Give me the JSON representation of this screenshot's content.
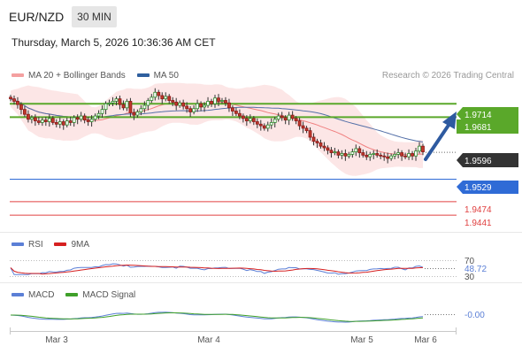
{
  "header": {
    "symbol": "EUR/NZD",
    "timeframe": "30 MIN",
    "datetime": "Thursday, March 5, 2026 10:36:36 AM CET"
  },
  "legend": {
    "main": [
      {
        "label": "MA 20 + Bollinger Bands",
        "color": "#f4a0a0"
      },
      {
        "label": "MA 50",
        "color": "#2f5f9e"
      }
    ],
    "credit": "Research © 2026 Trading Central",
    "rsi": [
      {
        "label": "RSI",
        "color": "#5b7fd6"
      },
      {
        "label": "9MA",
        "color": "#d62020"
      }
    ],
    "macd": [
      {
        "label": "MACD",
        "color": "#5b7fd6"
      },
      {
        "label": "MACD Signal",
        "color": "#3fa02a"
      }
    ]
  },
  "chart_data": {
    "type": "candlestick",
    "x_labels": [
      "Mar 3",
      "Mar 4",
      "Mar 5",
      "Mar 6"
    ],
    "price_range": [
      1.94,
      1.976
    ],
    "levels": [
      {
        "label": "1.9714",
        "value": 1.9714,
        "kind": "resistance",
        "color": "#5aa82a"
      },
      {
        "label": "1.9681",
        "value": 1.9681,
        "kind": "resistance",
        "color": "#5aa82a"
      },
      {
        "label": "1.9596",
        "value": 1.9596,
        "kind": "last",
        "color": "#333333"
      },
      {
        "label": "1.9529",
        "value": 1.9529,
        "kind": "pivot",
        "color": "#2f6bd6"
      },
      {
        "label": "1.9474",
        "value": 1.9474,
        "kind": "support",
        "color": "#e04040"
      },
      {
        "label": "1.9441",
        "value": 1.9441,
        "kind": "support",
        "color": "#e04040"
      }
    ],
    "closes": [
      1.9726,
      1.972,
      1.9712,
      1.97,
      1.9688,
      1.9676,
      1.968,
      1.9672,
      1.9668,
      1.9674,
      1.967,
      1.9678,
      1.9668,
      1.9664,
      1.967,
      1.9662,
      1.9672,
      1.9668,
      1.968,
      1.9676,
      1.9684,
      1.9674,
      1.967,
      1.9676,
      1.9684,
      1.969,
      1.97,
      1.9714,
      1.9716,
      1.972,
      1.9726,
      1.9712,
      1.9704,
      1.972,
      1.9692,
      1.9686,
      1.9694,
      1.9702,
      1.971,
      1.9722,
      1.973,
      1.9742,
      1.9734,
      1.9726,
      1.9732,
      1.9722,
      1.9718,
      1.971,
      1.9716,
      1.9708,
      1.9702,
      1.9694,
      1.9702,
      1.9714,
      1.9706,
      1.971,
      1.972,
      1.9714,
      1.9728,
      1.972,
      1.9722,
      1.9716,
      1.9704,
      1.9696,
      1.969,
      1.9684,
      1.9678,
      1.9672,
      1.9678,
      1.967,
      1.9664,
      1.966,
      1.9654,
      1.9662,
      1.9668,
      1.9676,
      1.9684,
      1.968,
      1.9674,
      1.9686,
      1.9678,
      1.9672,
      1.966,
      1.9654,
      1.9648,
      1.9632,
      1.9622,
      1.9618,
      1.961,
      1.9606,
      1.96,
      1.9594,
      1.9596,
      1.9588,
      1.9592,
      1.9586,
      1.959,
      1.9596,
      1.9604,
      1.9594,
      1.9588,
      1.9584,
      1.959,
      1.9592,
      1.9588,
      1.9586,
      1.9584,
      1.958,
      1.9586,
      1.959,
      1.9594,
      1.9586,
      1.9584,
      1.9592,
      1.9586,
      1.9598,
      1.961,
      1.9596
    ],
    "rsi": {
      "value_label": "48.72",
      "overbought": "70",
      "oversold": "30",
      "range": [
        0,
        100
      ]
    },
    "macd": {
      "value_label": "-0.00"
    }
  }
}
